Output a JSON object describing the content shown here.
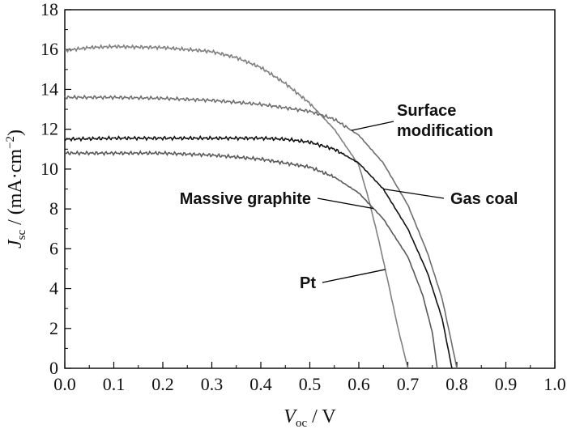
{
  "chart_data": {
    "type": "line",
    "xlim": [
      0.0,
      1.0
    ],
    "ylim": [
      0,
      18
    ],
    "x_ticks": [
      "0.0",
      "0.1",
      "0.2",
      "0.3",
      "0.4",
      "0.5",
      "0.6",
      "0.7",
      "0.8",
      "0.9",
      "1.0"
    ],
    "x_tick_values": [
      0.0,
      0.1,
      0.2,
      0.3,
      0.4,
      0.5,
      0.6,
      0.7,
      0.8,
      0.9,
      1.0
    ],
    "y_ticks": [
      "0",
      "2",
      "4",
      "6",
      "8",
      "10",
      "12",
      "14",
      "16",
      "18"
    ],
    "y_tick_values": [
      0,
      2,
      4,
      6,
      8,
      10,
      12,
      14,
      16,
      18
    ],
    "xlabel": {
      "main": "V",
      "sub": "oc",
      "rest": " / V"
    },
    "ylabel": {
      "main": "J",
      "sub": "sc",
      "rest": " / (mA·cm",
      "sup": "−2",
      "end": ")"
    },
    "grid": false,
    "series": [
      {
        "key": "pt",
        "color": "#808080",
        "points": [
          [
            0.0,
            15.95
          ],
          [
            0.05,
            16.1
          ],
          [
            0.1,
            16.15
          ],
          [
            0.2,
            16.1
          ],
          [
            0.3,
            15.9
          ],
          [
            0.35,
            15.6
          ],
          [
            0.4,
            15.1
          ],
          [
            0.45,
            14.3
          ],
          [
            0.5,
            13.3
          ],
          [
            0.55,
            12.0
          ],
          [
            0.6,
            10.2
          ],
          [
            0.62,
            8.5
          ],
          [
            0.64,
            6.5
          ],
          [
            0.66,
            4.3
          ],
          [
            0.68,
            2.0
          ],
          [
            0.7,
            0.0
          ]
        ]
      },
      {
        "key": "surface-modification",
        "color": "#6e6e6e",
        "points": [
          [
            0.0,
            13.6
          ],
          [
            0.1,
            13.6
          ],
          [
            0.2,
            13.55
          ],
          [
            0.3,
            13.45
          ],
          [
            0.4,
            13.25
          ],
          [
            0.5,
            12.9
          ],
          [
            0.55,
            12.5
          ],
          [
            0.6,
            11.7
          ],
          [
            0.65,
            10.3
          ],
          [
            0.7,
            8.2
          ],
          [
            0.74,
            5.8
          ],
          [
            0.77,
            3.5
          ],
          [
            0.79,
            1.2
          ],
          [
            0.8,
            0.0
          ]
        ]
      },
      {
        "key": "gas-coal",
        "color": "#111111",
        "points": [
          [
            0.0,
            11.5
          ],
          [
            0.1,
            11.55
          ],
          [
            0.2,
            11.55
          ],
          [
            0.3,
            11.55
          ],
          [
            0.4,
            11.55
          ],
          [
            0.45,
            11.5
          ],
          [
            0.5,
            11.35
          ],
          [
            0.55,
            11.0
          ],
          [
            0.6,
            10.3
          ],
          [
            0.65,
            9.0
          ],
          [
            0.7,
            7.0
          ],
          [
            0.74,
            4.8
          ],
          [
            0.77,
            2.5
          ],
          [
            0.79,
            0.0
          ]
        ]
      },
      {
        "key": "massive-graphite",
        "color": "#595959",
        "points": [
          [
            0.0,
            10.8
          ],
          [
            0.1,
            10.8
          ],
          [
            0.2,
            10.8
          ],
          [
            0.3,
            10.7
          ],
          [
            0.4,
            10.5
          ],
          [
            0.5,
            10.1
          ],
          [
            0.55,
            9.6
          ],
          [
            0.6,
            8.8
          ],
          [
            0.65,
            7.5
          ],
          [
            0.7,
            5.6
          ],
          [
            0.73,
            3.7
          ],
          [
            0.75,
            1.8
          ],
          [
            0.76,
            0.0
          ]
        ]
      }
    ],
    "annotations": [
      {
        "key": "surface",
        "lines": [
          "Surface",
          "modification"
        ],
        "target_series": "surface-modification"
      },
      {
        "key": "gas",
        "lines": [
          "Gas coal"
        ],
        "target_series": "gas-coal"
      },
      {
        "key": "massive",
        "lines": [
          "Massive graphite"
        ],
        "target_series": "massive-graphite"
      },
      {
        "key": "pt",
        "lines": [
          "Pt"
        ],
        "target_series": "pt"
      }
    ]
  }
}
